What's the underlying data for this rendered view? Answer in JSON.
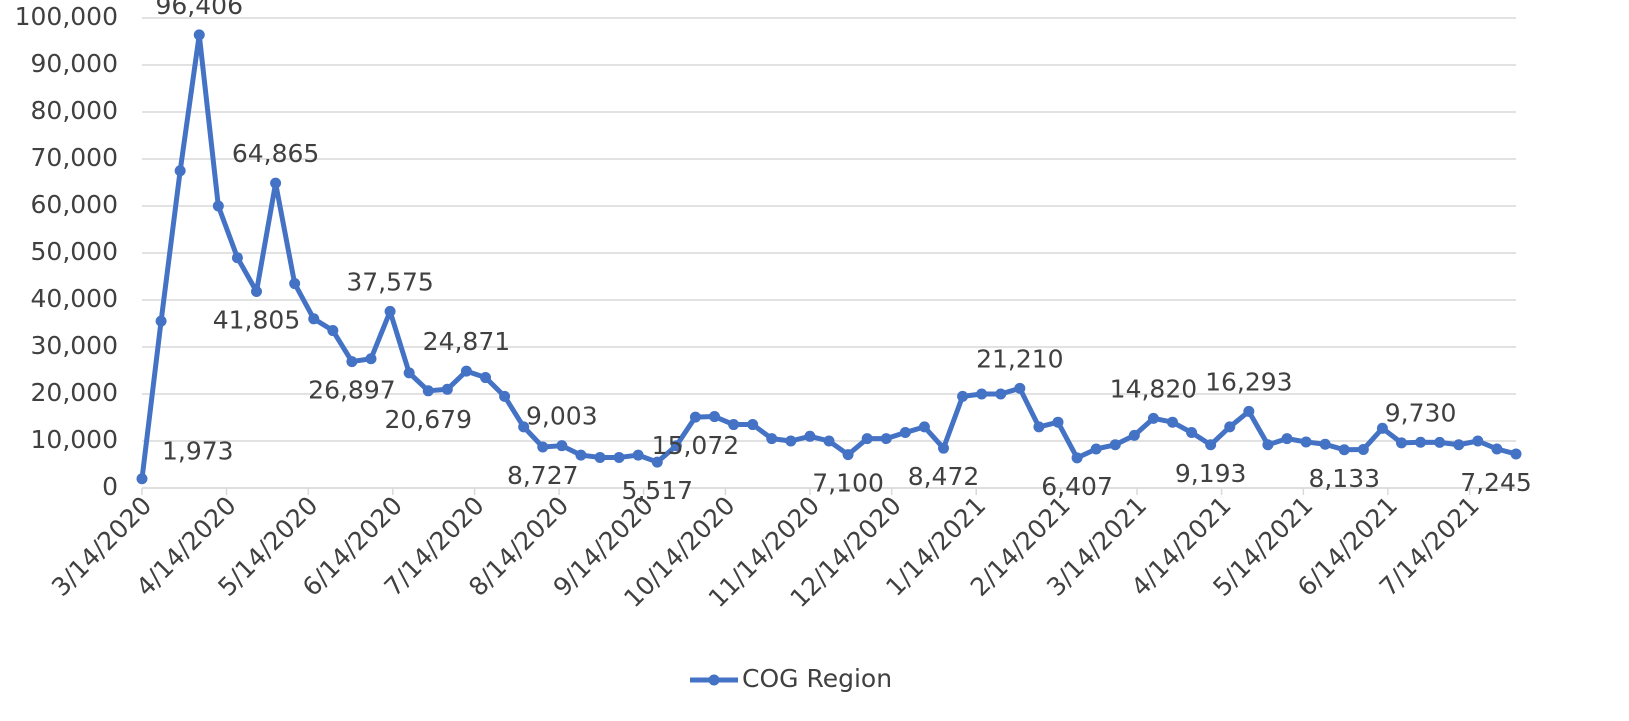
{
  "chart_data": {
    "type": "line",
    "x": [
      "3/14/2020",
      "3/21/2020",
      "3/28/2020",
      "4/4/2020",
      "4/11/2020",
      "4/18/2020",
      "4/25/2020",
      "5/2/2020",
      "5/9/2020",
      "5/16/2020",
      "5/23/2020",
      "5/30/2020",
      "6/6/2020",
      "6/13/2020",
      "6/20/2020",
      "6/27/2020",
      "7/4/2020",
      "7/11/2020",
      "7/18/2020",
      "7/25/2020",
      "8/1/2020",
      "8/8/2020",
      "8/15/2020",
      "8/22/2020",
      "8/29/2020",
      "9/5/2020",
      "9/12/2020",
      "9/19/2020",
      "9/26/2020",
      "10/3/2020",
      "10/10/2020",
      "10/17/2020",
      "10/24/2020",
      "10/31/2020",
      "11/7/2020",
      "11/14/2020",
      "11/21/2020",
      "11/28/2020",
      "12/5/2020",
      "12/12/2020",
      "12/19/2020",
      "12/26/2020",
      "1/2/2021",
      "1/9/2021",
      "1/16/2021",
      "1/23/2021",
      "1/30/2021",
      "2/6/2021",
      "2/13/2021",
      "2/20/2021",
      "2/27/2021",
      "3/6/2021",
      "3/13/2021",
      "3/20/2021",
      "3/27/2021",
      "4/3/2021",
      "4/10/2021",
      "4/17/2021",
      "4/24/2021",
      "5/1/2021",
      "5/8/2021",
      "5/15/2021",
      "5/22/2021",
      "5/29/2021",
      "6/5/2021",
      "6/12/2021",
      "6/19/2021",
      "6/26/2021",
      "7/3/2021",
      "7/10/2021",
      "7/17/2021",
      "7/24/2021",
      "7/31/2021"
    ],
    "series": [
      {
        "name": "COG Region",
        "color": "#4472c4",
        "values": [
          1973,
          35500,
          67500,
          96406,
          60000,
          49000,
          41805,
          64865,
          43500,
          36000,
          33500,
          26897,
          27500,
          37575,
          24500,
          20679,
          21000,
          24871,
          23500,
          19500,
          13000,
          8727,
          9003,
          7000,
          6500,
          6500,
          7000,
          5517,
          9000,
          15072,
          15200,
          13500,
          13500,
          10500,
          10000,
          11000,
          10000,
          7100,
          10500,
          10500,
          11800,
          13000,
          8472,
          19500,
          20000,
          20000,
          21210,
          13000,
          14000,
          6407,
          8300,
          9200,
          11200,
          14820,
          14000,
          11800,
          9193,
          13000,
          16293,
          9200,
          10500,
          9800,
          9300,
          8133,
          8200,
          12700,
          9600,
          9730,
          9700,
          9200,
          10000,
          8300,
          7245
        ],
        "value_labels": [
          "1,973",
          null,
          null,
          "96,406",
          null,
          null,
          "41,805",
          "64,865",
          null,
          null,
          null,
          "26,897",
          null,
          "37,575",
          null,
          "20,679",
          null,
          "24,871",
          null,
          null,
          null,
          "8,727",
          "9,003",
          null,
          null,
          null,
          null,
          "5,517",
          null,
          "15,072",
          null,
          null,
          null,
          null,
          null,
          null,
          null,
          "7,100",
          null,
          null,
          null,
          null,
          "8,472",
          null,
          null,
          null,
          "21,210",
          null,
          null,
          "6,407",
          null,
          null,
          null,
          "14,820",
          null,
          null,
          "9,193",
          null,
          "16,293",
          null,
          null,
          null,
          null,
          "8,133",
          null,
          null,
          null,
          "9,730",
          null,
          null,
          null,
          null,
          "7,245"
        ]
      }
    ],
    "xlim": [
      "3/14/2020",
      "7/31/2021"
    ],
    "xticks": [
      "3/14/2020",
      "4/14/2020",
      "5/14/2020",
      "6/14/2020",
      "7/14/2020",
      "8/14/2020",
      "9/14/2020",
      "10/14/2020",
      "11/14/2020",
      "12/14/2020",
      "1/14/2021",
      "2/14/2021",
      "3/14/2021",
      "4/14/2021",
      "5/14/2021",
      "6/14/2021",
      "7/14/2021"
    ],
    "ylim": [
      0,
      100000
    ],
    "yticks": [
      0,
      {
        "value": 10000,
        "label": "10,000"
      },
      {
        "value": 20000,
        "label": "20,000"
      },
      {
        "value": 30000,
        "label": "30,000"
      },
      {
        "value": 40000,
        "label": "40,000"
      },
      {
        "value": 50000,
        "label": "50,000"
      },
      {
        "value": 60000,
        "label": "60,000"
      },
      {
        "value": 70000,
        "label": "70,000"
      },
      {
        "value": 80000,
        "label": "80,000"
      },
      {
        "value": 90000,
        "label": "90,000"
      },
      {
        "value": 100000,
        "label": "100,000"
      }
    ],
    "grid": true,
    "legend": "bottom"
  }
}
